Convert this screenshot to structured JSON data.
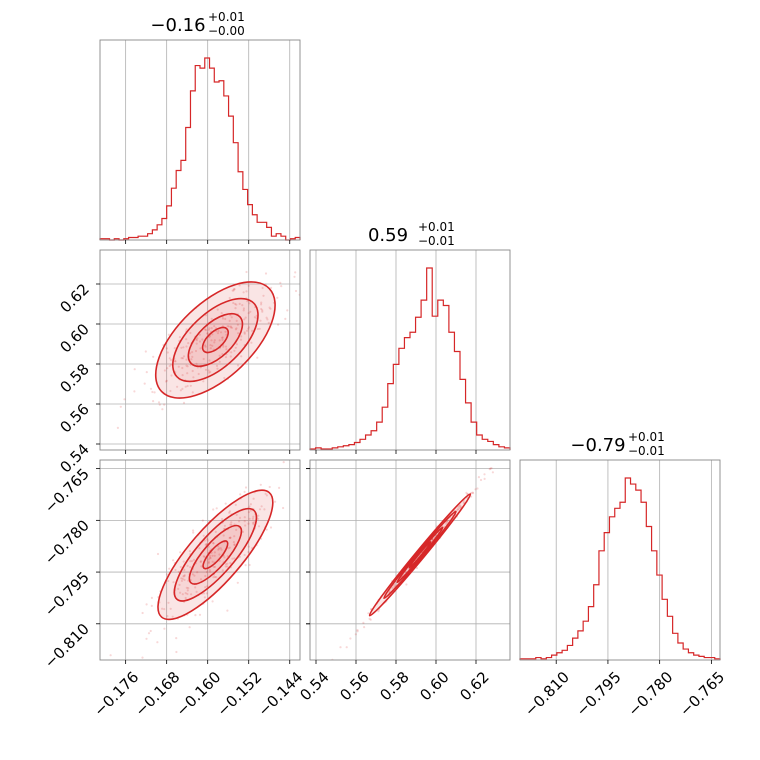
{
  "chart_data": {
    "type": "corner",
    "color": "#d62728",
    "grid": true,
    "params": [
      {
        "range": [
          -0.181,
          -0.142
        ],
        "ticks": [
          -0.176,
          -0.168,
          -0.16,
          -0.152,
          -0.144
        ],
        "tick_labels": [
          "−0.176",
          "−0.168",
          "−0.160",
          "−0.152",
          "−0.144"
        ],
        "title": {
          "value": "−0.16",
          "plus": "+0.01",
          "minus": "−0.00"
        },
        "histogram": [
          1,
          1,
          0,
          1,
          0,
          1,
          2,
          2,
          3,
          3,
          5,
          8,
          12,
          17,
          27,
          41,
          55,
          63,
          89,
          118,
          138,
          136,
          144,
          136,
          125,
          126,
          114,
          98,
          77,
          54,
          40,
          28,
          20,
          14,
          14,
          10,
          3,
          5,
          3,
          0,
          1,
          2
        ]
      },
      {
        "range": [
          0.537,
          0.637
        ],
        "ticks": [
          0.54,
          0.56,
          0.58,
          0.6,
          0.62
        ],
        "tick_labels": [
          "0.54",
          "0.56",
          "0.58",
          "0.60",
          "0.62"
        ],
        "title": {
          "value": "0.59",
          "plus": "+0.01",
          "minus": "−0.01"
        },
        "histogram": [
          1,
          2,
          1,
          1,
          2,
          3,
          4,
          5,
          7,
          10,
          14,
          18,
          26,
          40,
          62,
          80,
          95,
          105,
          110,
          124,
          140,
          170,
          125,
          140,
          135,
          110,
          92,
          66,
          44,
          26,
          14,
          10,
          8,
          5,
          3,
          2
        ]
      },
      {
        "range": [
          -0.8205,
          -0.7625
        ],
        "ticks": [
          -0.81,
          -0.795,
          -0.78,
          -0.765
        ],
        "tick_labels": [
          "−0.810",
          "−0.795",
          "−0.780",
          "−0.765"
        ],
        "title": {
          "value": "−0.79",
          "plus": "+0.01",
          "minus": "−0.01"
        },
        "histogram": [
          1,
          1,
          1,
          2,
          1,
          2,
          4,
          6,
          8,
          12,
          18,
          24,
          32,
          44,
          62,
          90,
          105,
          118,
          125,
          130,
          150,
          145,
          140,
          130,
          110,
          90,
          70,
          50,
          36,
          22,
          14,
          9,
          6,
          4,
          3,
          2,
          2,
          1
        ]
      }
    ],
    "pairs": [
      {
        "row": 1,
        "col": 0,
        "slope": 2.45,
        "center": [
          -0.1585,
          0.592
        ],
        "x_sd": 0.005,
        "perp_sd": 0.0032
      },
      {
        "row": 2,
        "col": 0,
        "slope": 1.72,
        "center": [
          -0.1585,
          -0.79
        ],
        "x_sd": 0.005,
        "perp_sd": 0.0023
      },
      {
        "row": 2,
        "col": 1,
        "slope": 0.7,
        "center": [
          0.592,
          -0.79
        ],
        "x_sd": 0.012,
        "perp_sd": 0.0006
      }
    ]
  }
}
